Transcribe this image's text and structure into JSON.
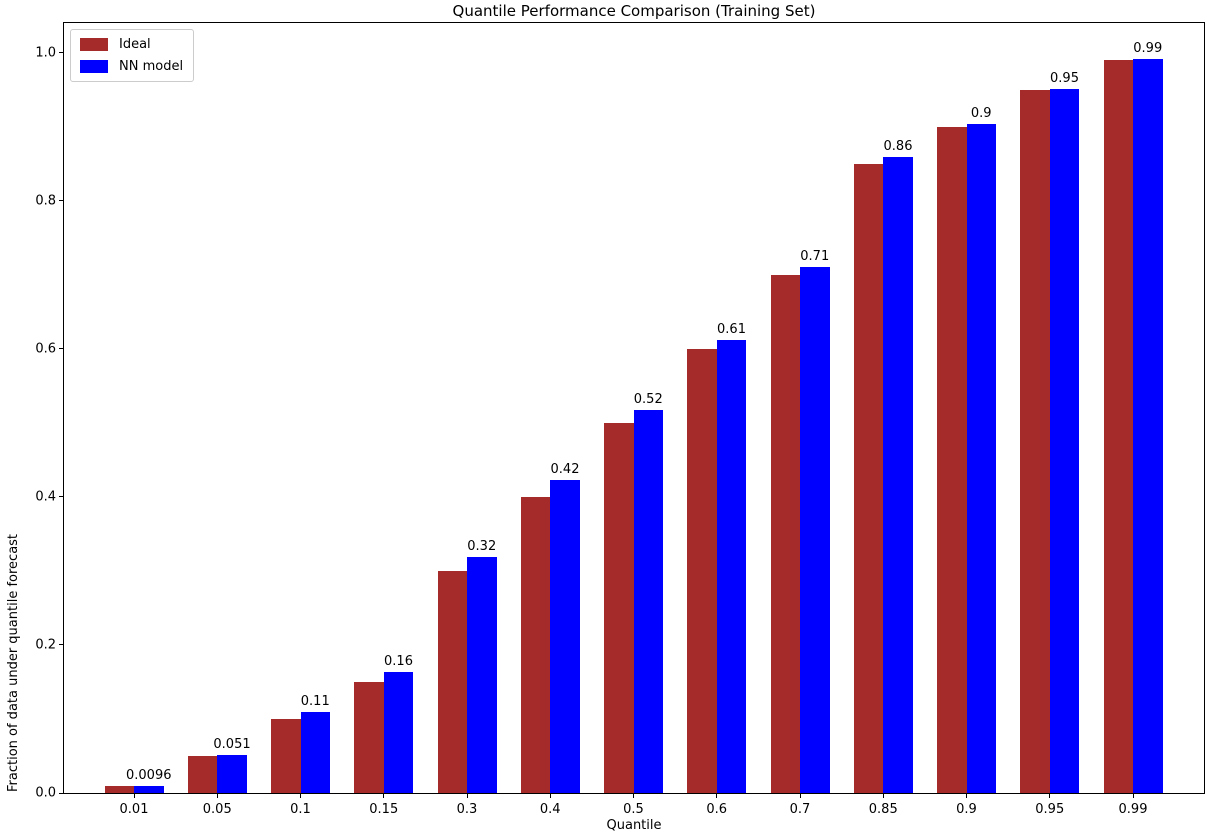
{
  "chart_data": {
    "type": "bar",
    "title": "Quantile Performance Comparison (Training Set)",
    "xlabel": "Quantile",
    "ylabel": "Fraction of data under quantile forecast",
    "categories": [
      "0.01",
      "0.05",
      "0.1",
      "0.15",
      "0.3",
      "0.4",
      "0.5",
      "0.6",
      "0.7",
      "0.85",
      "0.9",
      "0.95",
      "0.99"
    ],
    "series": [
      {
        "name": "Ideal",
        "color": "#a52a2a",
        "values": [
          0.01,
          0.05,
          0.1,
          0.15,
          0.3,
          0.4,
          0.5,
          0.6,
          0.7,
          0.85,
          0.9,
          0.95,
          0.99
        ]
      },
      {
        "name": "NN model",
        "color": "#0000ff",
        "values": [
          0.0096,
          0.051,
          0.109,
          0.164,
          0.319,
          0.423,
          0.517,
          0.612,
          0.711,
          0.859,
          0.903,
          0.951,
          0.991
        ],
        "value_labels": [
          "0.0096",
          "0.051",
          "0.11",
          "0.16",
          "0.32",
          "0.42",
          "0.52",
          "0.61",
          "0.71",
          "0.86",
          "0.9",
          "0.95",
          "0.99"
        ]
      }
    ],
    "y_ticks": [
      "0.0",
      "0.2",
      "0.4",
      "0.6",
      "0.8",
      "1.0"
    ],
    "ylim": [
      0,
      1.04
    ],
    "grid": false,
    "legend_position": "upper left",
    "colors": {
      "background": "#ffffff",
      "axis": "#000000",
      "text": "#000000",
      "legend_border": "#cccccc"
    }
  }
}
